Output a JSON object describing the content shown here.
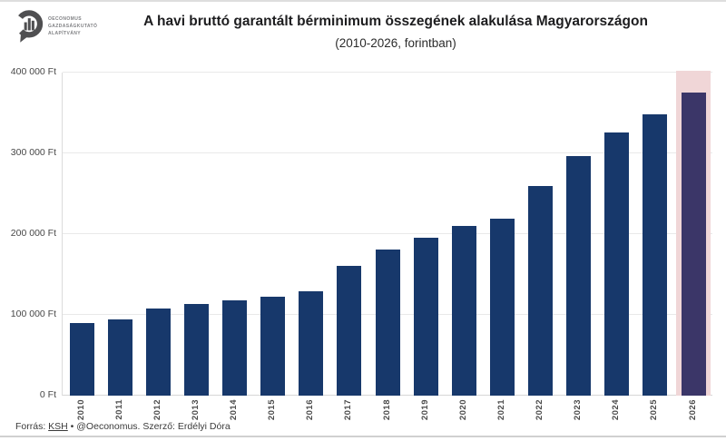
{
  "logo": {
    "lines": [
      "OECONOMUS",
      "GAZDASÁGKUTATÓ",
      "ALAPÍTVÁNY"
    ]
  },
  "header": {
    "title": "A havi bruttó garantált bérminimum összegének alakulása Magyarországon",
    "subtitle": "(2010-2026, forintban)"
  },
  "chart_data": {
    "type": "bar",
    "title": "A havi bruttó garantált bérminimum összegének alakulása Magyarországon",
    "subtitle": "(2010-2026, forintban)",
    "categories": [
      "2010",
      "2011",
      "2012",
      "2013",
      "2014",
      "2015",
      "2016",
      "2017",
      "2018",
      "2019",
      "2020",
      "2021",
      "2022",
      "2023",
      "2024",
      "2025",
      "2026"
    ],
    "values": [
      89500,
      94000,
      108000,
      114000,
      118000,
      122000,
      129000,
      161000,
      180500,
      195000,
      210600,
      219000,
      260000,
      296400,
      326000,
      348800,
      375000
    ],
    "unit": "Ft",
    "ylim": [
      0,
      400000
    ],
    "ytick_values": [
      0,
      100000,
      200000,
      300000,
      400000
    ],
    "ytick_labels": [
      "0 Ft",
      "100 000 Ft",
      "200 000 Ft",
      "300 000 Ft",
      "400 000 Ft"
    ],
    "grid": true,
    "legend": "none",
    "highlight_category": "2026",
    "colors": {
      "bar": "#17386b",
      "highlight_bar": "#3b3668",
      "highlight_band": "#f0d6d7",
      "gridline": "#e9e9e9",
      "axis_line": "#dcdcdc"
    }
  },
  "footer": {
    "source_prefix": "Forrás: ",
    "source_link": "KSH",
    "credit": " • @Oeconomus. Szerző: Erdélyi Dóra"
  }
}
